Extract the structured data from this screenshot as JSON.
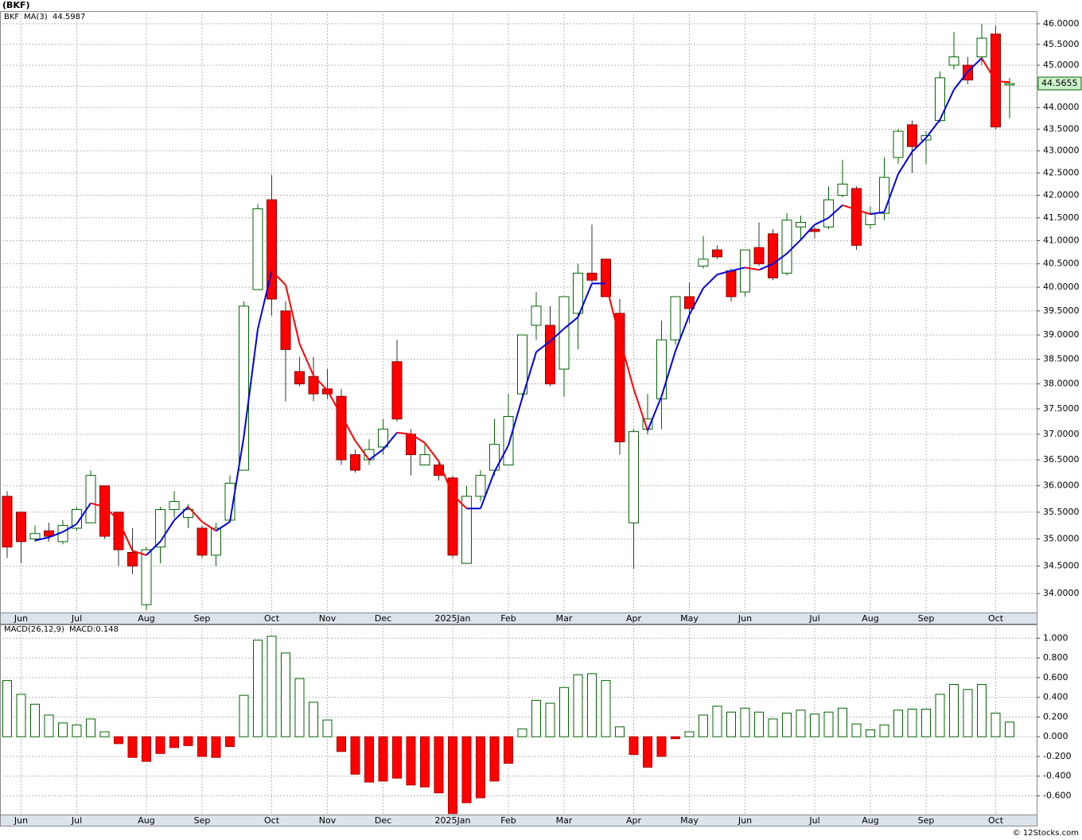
{
  "title": "(BKF)",
  "watermark": "© 12Stocks.com",
  "chart_data": [
    {
      "type": "candlestick",
      "symbol": "BKF",
      "categories": [
        null,
        "Jun",
        null,
        null,
        null,
        "Jul",
        null,
        null,
        null,
        null,
        "Aug",
        null,
        null,
        null,
        "Sep",
        null,
        null,
        null,
        null,
        "Oct",
        null,
        null,
        null,
        "Nov",
        null,
        null,
        null,
        "Dec",
        null,
        null,
        null,
        null,
        "2025Jan",
        null,
        null,
        null,
        "Feb",
        null,
        null,
        null,
        "Mar",
        null,
        null,
        null,
        null,
        "Apr",
        null,
        null,
        null,
        "May",
        null,
        null,
        null,
        "Jun",
        null,
        null,
        null,
        null,
        "Jul",
        null,
        null,
        null,
        "Aug",
        null,
        null,
        null,
        "Sep",
        null,
        null,
        null,
        null,
        "Oct",
        null
      ],
      "open": [
        35.8,
        35.5,
        35.0,
        35.15,
        34.95,
        35.2,
        35.3,
        36.0,
        35.5,
        34.75,
        33.8,
        34.85,
        35.55,
        35.4,
        35.2,
        34.7,
        35.35,
        36.3,
        39.95,
        41.9,
        39.5,
        38.25,
        38.15,
        37.9,
        37.75,
        36.6,
        36.5,
        36.75,
        38.45,
        37.0,
        36.4,
        36.4,
        36.15,
        34.55,
        35.8,
        36.3,
        36.4,
        37.8,
        39.2,
        39.2,
        38.3,
        39.45,
        40.3,
        40.6,
        39.45,
        35.3,
        37.1,
        37.7,
        38.9,
        39.8,
        40.45,
        40.8,
        40.35,
        39.9,
        40.85,
        41.15,
        40.3,
        41.3,
        41.25,
        41.3,
        42.0,
        42.15,
        41.35,
        41.6,
        42.85,
        43.6,
        43.25,
        43.7,
        45.0,
        45.0,
        45.2,
        45.75,
        44.53
      ],
      "high": [
        35.9,
        35.5,
        35.25,
        35.3,
        35.35,
        35.6,
        36.3,
        36.0,
        35.5,
        35.2,
        34.85,
        35.6,
        35.9,
        35.65,
        35.25,
        35.3,
        36.2,
        39.7,
        41.8,
        42.45,
        39.7,
        38.55,
        38.55,
        38.3,
        37.9,
        36.7,
        36.9,
        37.3,
        38.9,
        37.1,
        36.8,
        36.5,
        36.2,
        36.0,
        36.3,
        37.3,
        37.8,
        39.0,
        39.9,
        39.6,
        39.8,
        40.5,
        41.35,
        40.6,
        39.75,
        37.1,
        37.8,
        39.3,
        39.8,
        40.1,
        41.1,
        40.9,
        40.4,
        40.8,
        41.4,
        41.25,
        41.6,
        41.55,
        41.3,
        42.2,
        42.8,
        42.2,
        41.75,
        42.85,
        43.5,
        43.7,
        43.45,
        44.85,
        45.8,
        45.2,
        46.0,
        45.95,
        44.7
      ],
      "low": [
        34.65,
        34.55,
        34.95,
        34.95,
        34.9,
        35.15,
        35.3,
        35.0,
        34.5,
        34.35,
        33.7,
        34.55,
        35.4,
        35.2,
        34.65,
        34.5,
        35.3,
        36.3,
        39.95,
        39.4,
        37.65,
        37.95,
        37.65,
        37.7,
        36.4,
        36.25,
        36.4,
        36.6,
        37.25,
        36.2,
        36.4,
        36.1,
        34.65,
        34.55,
        35.7,
        36.2,
        36.4,
        37.75,
        38.9,
        37.95,
        37.75,
        38.7,
        40.1,
        39.8,
        36.6,
        34.45,
        37.0,
        37.1,
        38.8,
        39.25,
        40.4,
        40.6,
        39.7,
        39.8,
        40.45,
        40.15,
        40.25,
        41.0,
        41.05,
        41.25,
        41.95,
        40.8,
        41.25,
        41.45,
        42.7,
        42.5,
        42.7,
        43.65,
        44.9,
        44.55,
        45.0,
        43.5,
        43.75
      ],
      "close": [
        34.85,
        34.95,
        35.1,
        35.05,
        35.25,
        35.55,
        36.2,
        35.05,
        34.8,
        34.5,
        34.8,
        35.55,
        35.7,
        35.55,
        34.7,
        35.2,
        36.05,
        39.6,
        41.7,
        39.75,
        38.7,
        38.0,
        37.8,
        37.8,
        36.5,
        36.3,
        36.7,
        37.1,
        37.3,
        36.6,
        36.6,
        36.2,
        34.7,
        35.8,
        36.2,
        36.8,
        37.35,
        39.0,
        39.6,
        38.0,
        39.8,
        40.3,
        40.15,
        39.8,
        36.85,
        37.05,
        37.3,
        38.9,
        39.8,
        39.55,
        40.6,
        40.65,
        39.8,
        40.8,
        40.5,
        40.2,
        41.45,
        41.4,
        41.2,
        41.9,
        42.25,
        40.9,
        41.6,
        42.4,
        43.45,
        43.1,
        43.35,
        44.7,
        45.2,
        44.65,
        45.65,
        43.55,
        44.5655
      ],
      "up_color": "#006400",
      "down_color": "#ff0000",
      "log_scale": true,
      "grid": true,
      "ylim": [
        33.66,
        46.31
      ],
      "yticks": [
        {
          "value": 34,
          "label": "34.0000"
        },
        {
          "value": 34.5,
          "label": "34.5000"
        },
        {
          "value": 35,
          "label": "35.0000"
        },
        {
          "value": 35.5,
          "label": "35.5000"
        },
        {
          "value": 36,
          "label": "36.0000"
        },
        {
          "value": 36.5,
          "label": "36.5000"
        },
        {
          "value": 37,
          "label": "37.0000"
        },
        {
          "value": 37.5,
          "label": "37.5000"
        },
        {
          "value": 38,
          "label": "38.0000"
        },
        {
          "value": 38.5,
          "label": "38.5000"
        },
        {
          "value": 39,
          "label": "39.0000"
        },
        {
          "value": 39.5,
          "label": "39.5000"
        },
        {
          "value": 40,
          "label": "40.0000"
        },
        {
          "value": 40.5,
          "label": "40.5000"
        },
        {
          "value": 41,
          "label": "41.0000"
        },
        {
          "value": 41.5,
          "label": "41.5000"
        },
        {
          "value": 42,
          "label": "42.0000"
        },
        {
          "value": 42.5,
          "label": "42.5000"
        },
        {
          "value": 43,
          "label": "43.0000"
        },
        {
          "value": 43.5,
          "label": "43.5000"
        },
        {
          "value": 44,
          "label": "44.0000"
        },
        {
          "value": 44.5,
          "label": "44.5000"
        },
        {
          "value": 45,
          "label": "45.0000"
        },
        {
          "value": 45.5,
          "label": "45.5000"
        },
        {
          "value": 46,
          "label": "46.0000"
        }
      ],
      "series": [
        {
          "name": "MA(3)",
          "rising_color": "#0000dd",
          "falling_color": "#ff0000",
          "values": [
            null,
            null,
            34.97,
            35.03,
            35.13,
            35.28,
            35.67,
            35.6,
            35.35,
            34.78,
            34.7,
            34.95,
            35.35,
            35.6,
            35.32,
            35.15,
            35.32,
            36.95,
            39.12,
            40.35,
            40.05,
            38.82,
            38.17,
            37.87,
            37.37,
            36.87,
            36.5,
            36.7,
            37.03,
            37.0,
            36.83,
            36.47,
            35.83,
            35.57,
            35.57,
            36.27,
            36.78,
            37.72,
            38.65,
            38.87,
            39.13,
            39.37,
            40.08,
            40.08,
            38.93,
            37.9,
            37.07,
            37.75,
            38.67,
            39.42,
            39.98,
            40.27,
            40.35,
            40.42,
            40.37,
            40.5,
            40.72,
            41.02,
            41.35,
            41.5,
            41.78,
            41.68,
            41.58,
            41.63,
            42.48,
            42.98,
            43.3,
            43.72,
            44.42,
            44.85,
            45.17,
            44.62,
            44.5987
          ]
        }
      ]
    },
    {
      "type": "bar",
      "name": "MACD(26,12,9)",
      "value_name": "MACD:",
      "categories": [
        null,
        "Jun",
        null,
        null,
        null,
        "Jul",
        null,
        null,
        null,
        null,
        "Aug",
        null,
        null,
        null,
        "Sep",
        null,
        null,
        null,
        null,
        "Oct",
        null,
        null,
        null,
        "Nov",
        null,
        null,
        null,
        "Dec",
        null,
        null,
        null,
        null,
        "2025Jan",
        null,
        null,
        null,
        "Feb",
        null,
        null,
        null,
        "Mar",
        null,
        null,
        null,
        null,
        "Apr",
        null,
        null,
        null,
        "May",
        null,
        null,
        null,
        "Jun",
        null,
        null,
        null,
        null,
        "Jul",
        null,
        null,
        null,
        "Aug",
        null,
        null,
        null,
        "Sep",
        null,
        null,
        null,
        null,
        "Oct",
        null
      ],
      "values": [
        0.57,
        0.43,
        0.33,
        0.22,
        0.14,
        0.12,
        0.18,
        0.05,
        -0.07,
        -0.21,
        -0.25,
        -0.17,
        -0.11,
        -0.09,
        -0.2,
        -0.21,
        -0.1,
        0.42,
        0.98,
        1.02,
        0.85,
        0.59,
        0.35,
        0.17,
        -0.15,
        -0.38,
        -0.46,
        -0.45,
        -0.42,
        -0.49,
        -0.51,
        -0.57,
        -0.78,
        -0.67,
        -0.62,
        -0.45,
        -0.27,
        0.08,
        0.37,
        0.34,
        0.5,
        0.63,
        0.64,
        0.57,
        0.1,
        -0.18,
        -0.31,
        -0.2,
        -0.02,
        0.05,
        0.22,
        0.31,
        0.25,
        0.29,
        0.25,
        0.18,
        0.24,
        0.27,
        0.23,
        0.25,
        0.29,
        0.13,
        0.07,
        0.12,
        0.27,
        0.28,
        0.28,
        0.43,
        0.53,
        0.48,
        0.53,
        0.24,
        0.148
      ],
      "positive_color": "#006400",
      "negative_color": "#ff0000",
      "label_color": "#0000dd",
      "grid": true,
      "ylim": [
        -0.79,
        1.14
      ],
      "yticks": [
        {
          "value": -0.6,
          "label": "-0.600"
        },
        {
          "value": -0.4,
          "label": "-0.400"
        },
        {
          "value": -0.2,
          "label": "-0.200"
        },
        {
          "value": 0,
          "label": "0.000"
        },
        {
          "value": 0.2,
          "label": "0.200"
        },
        {
          "value": 0.4,
          "label": "0.400"
        },
        {
          "value": 0.6,
          "label": "0.600"
        },
        {
          "value": 0.8,
          "label": "0.800"
        },
        {
          "value": 1,
          "label": "1.000"
        }
      ]
    }
  ]
}
